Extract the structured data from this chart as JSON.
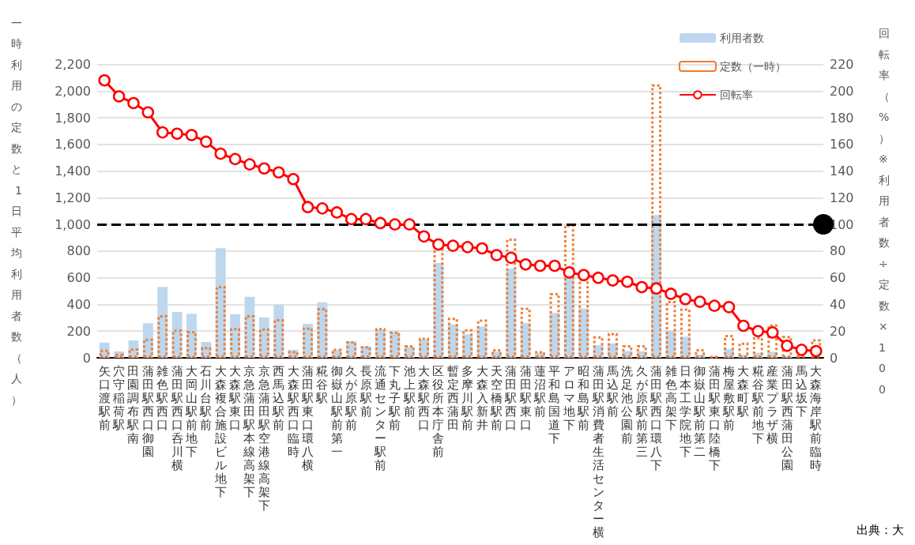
{
  "chart_data": {
    "type": "bar",
    "categories": [
      "矢口渡駅前",
      "穴守稲荷駅",
      "田園調布駅南",
      "蒲田駅西口御園",
      "雑色駅西口",
      "蒲田駅西口呑川横",
      "大岡山駅前地下",
      "石川台駅前",
      "大森複合施設ビル地下",
      "大森駅東口",
      "京急蒲田駅本線高架下",
      "京急蒲田駅空港線高架下",
      "西馬込駅前",
      "大森駅西口臨時",
      "蒲田駅東口環八横",
      "糀谷駅",
      "御嶽山駅前第一",
      "久が原駅前",
      "長原駅前",
      "流通センター駅前",
      "下丸子駅前",
      "池上駅前",
      "大森駅西口",
      "区役所本庁舎前",
      "暫定西蒲田",
      "多摩川駅前",
      "大森入新井",
      "天空橋駅前",
      "蒲田駅西口",
      "蒲田駅東口",
      "蓮沼駅前",
      "平和島国道下",
      "アロマ地下",
      "昭和島駅前",
      "蒲田駅消費者生活センター横",
      "馬込駅前",
      "洗足池公園前",
      "久が原駅前第三",
      "蒲田駅西口環八下",
      "雑色高架下",
      "日本工学院地下",
      "御嶽山駅前第二",
      "蒲田駅東口陸橋下",
      "梅屋敷駅前",
      "大森町駅",
      "糀谷駅前地下",
      "産業プラザ横",
      "蒲田駅西蒲田公園",
      "馬込坂下",
      "大森海岸駅前臨時"
    ],
    "series": [
      {
        "name": "利用者数",
        "color": "#bdd7ee",
        "values": [
          114,
          48,
          131,
          259,
          531,
          343,
          330,
          119,
          821,
          327,
          458,
          303,
          398,
          60,
          254,
          416,
          56,
          124,
          86,
          211,
          192,
          81,
          134,
          711,
          250,
          176,
          235,
          46,
          668,
          260,
          36,
          337,
          612,
          370,
          95,
          108,
          51,
          48,
          1070,
          204,
          158,
          23,
          null,
          65,
          23,
          38,
          45,
          15,
          null,
          null
        ]
      },
      {
        "name": "定数（一時）",
        "type": "bar",
        "color": "#ed7d31",
        "line_style": "dotted",
        "values": [
          61,
          31,
          71,
          144,
          320,
          211,
          201,
          81,
          539,
          224,
          320,
          220,
          290,
          51,
          227,
          373,
          68,
          124,
          88,
          224,
          197,
          95,
          151,
          837,
          300,
          214,
          287,
          65,
          894,
          376,
          51,
          486,
          1000,
          595,
          161,
          187,
          95,
          95,
          2050,
          426,
          370,
          65,
          12,
          171,
          114,
          156,
          250,
          164,
          20,
          139
        ]
      },
      {
        "name": "回転率",
        "type": "line",
        "axis": "y2",
        "color": "#ff0000",
        "marker": "circle",
        "values": [
          208,
          196,
          191,
          184,
          169,
          168,
          167,
          162,
          153,
          149,
          145,
          142,
          139,
          134,
          113,
          112,
          109,
          104,
          104,
          101,
          100,
          100,
          91,
          85,
          84,
          83,
          82,
          77,
          75,
          70,
          69,
          69,
          64,
          62,
          60,
          58,
          57,
          53,
          52,
          48,
          44,
          42,
          39,
          38,
          24,
          20,
          19,
          9,
          6,
          5
        ]
      }
    ],
    "ylabel": "一時利用の定数と1日平均利用者数（人）",
    "y2label": "回転率（%）※利用者数÷定数×100",
    "ylim": [
      0,
      2200
    ],
    "yticks": [
      0,
      200,
      400,
      600,
      800,
      {
        "value": 1000,
        "label": "1,000"
      },
      {
        "value": 1200,
        "label": "1,200"
      },
      {
        "value": 1400,
        "label": "1,400"
      },
      {
        "value": 1600,
        "label": "1,600"
      },
      {
        "value": 1800,
        "label": "1,800"
      },
      {
        "value": 2000,
        "label": "2,000"
      },
      {
        "value": 2200,
        "label": "2,200"
      }
    ],
    "y2lim": [
      0,
      220
    ],
    "y2ticks": [
      0,
      20,
      40,
      60,
      80,
      100,
      120,
      140,
      160,
      180,
      200,
      220
    ],
    "ref_lines": [
      {
        "axis": "y2",
        "value": 100,
        "label": null,
        "color": "#000000",
        "line_style": "dashed"
      }
    ],
    "grid": "y",
    "legend": "top right",
    "annotations": [
      "出典：大"
    ]
  }
}
